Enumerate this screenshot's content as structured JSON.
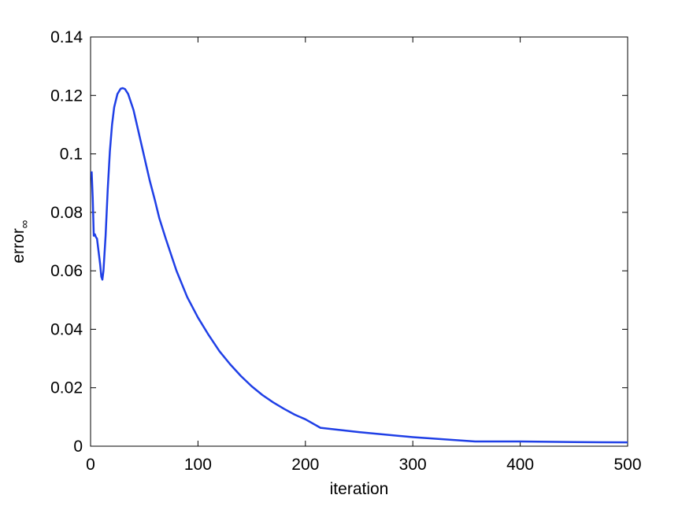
{
  "chart_data": {
    "type": "line",
    "xlabel": "iteration",
    "ylabel": "error",
    "ylabel_subscript": "∞",
    "x": [
      1,
      2,
      3,
      4,
      5,
      6,
      7,
      8,
      9,
      10,
      11,
      12,
      14,
      16,
      18,
      20,
      22,
      25,
      28,
      30,
      32,
      35,
      40,
      45,
      50,
      55,
      60,
      64,
      70,
      80,
      90,
      100,
      110,
      120,
      130,
      140,
      150,
      160,
      170,
      180,
      190,
      200,
      214,
      250,
      300,
      358,
      400,
      450,
      500
    ],
    "series": [
      {
        "color": "#1f3fe6",
        "values": [
          0.094,
          0.085,
          0.072,
          0.0725,
          0.0715,
          0.071,
          0.068,
          0.065,
          0.062,
          0.058,
          0.057,
          0.06,
          0.072,
          0.088,
          0.101,
          0.11,
          0.116,
          0.1205,
          0.1223,
          0.1225,
          0.1222,
          0.1205,
          0.115,
          0.107,
          0.099,
          0.091,
          0.084,
          0.078,
          0.071,
          0.06,
          0.051,
          0.044,
          0.038,
          0.0325,
          0.028,
          0.024,
          0.0205,
          0.0175,
          0.015,
          0.0128,
          0.0108,
          0.0092,
          0.0063,
          0.0048,
          0.0031,
          0.0016,
          0.0016,
          0.0014,
          0.0013
        ]
      }
    ],
    "xlim": [
      0,
      500
    ],
    "xticks": [
      0,
      100,
      200,
      300,
      400,
      500
    ],
    "ylim": [
      0,
      0.14
    ],
    "yticks": [
      0,
      0.02,
      0.04,
      0.06,
      0.08,
      0.1,
      0.12,
      0.14
    ]
  }
}
